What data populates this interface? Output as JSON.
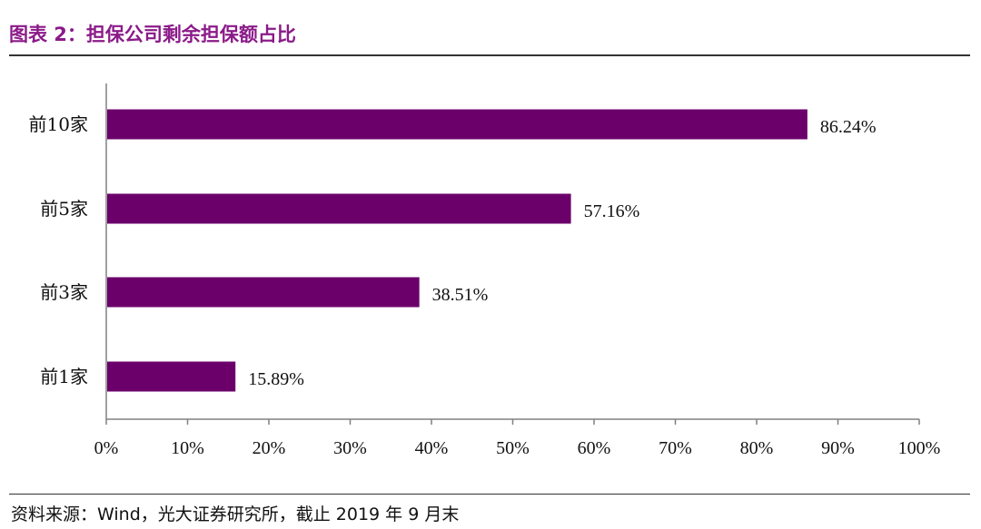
{
  "header": {
    "title": "图表 2：担保公司剩余担保额占比"
  },
  "footer": {
    "source": "资料来源：Wind，光大证券研究所，截止 2019 年 9 月末"
  },
  "colors": {
    "title": "#8B1A89",
    "bar": "#6B006B",
    "axis": "#808080"
  },
  "chart_data": {
    "type": "bar",
    "orientation": "horizontal",
    "categories": [
      "前10家",
      "前5家",
      "前3家",
      "前1家"
    ],
    "values": [
      86.24,
      57.16,
      38.51,
      15.89
    ],
    "value_labels": [
      "86.24%",
      "57.16%",
      "38.51%",
      "15.89%"
    ],
    "xlim": [
      0,
      100
    ],
    "x_ticks": [
      "0%",
      "10%",
      "20%",
      "30%",
      "40%",
      "50%",
      "60%",
      "70%",
      "80%",
      "90%",
      "100%"
    ],
    "grid": false,
    "legend": "none"
  }
}
